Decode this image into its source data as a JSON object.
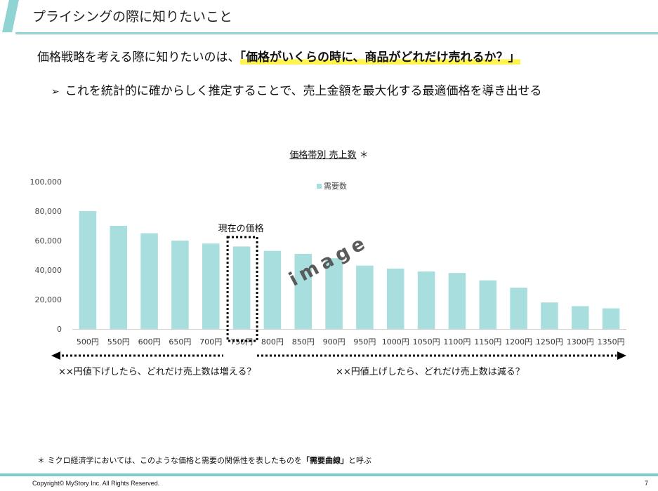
{
  "header": {
    "title": "プライシングの際に知りたいこと"
  },
  "lead": {
    "prefix": "価格戦略を考える際に知りたいのは、",
    "highlight": "「価格がいくらの時に、商品がどれだけ売れるか？」"
  },
  "bullet": {
    "marker": "➢",
    "text": "これを統計的に確からしく推定することで、売上金額を最大化する最適価格を導き出せる"
  },
  "chart_title": {
    "main": "価格帯別 売上数",
    "mark": "＊"
  },
  "chart_data": {
    "type": "bar",
    "title": "価格帯別 売上数",
    "categories": [
      "500円",
      "550円",
      "600円",
      "650円",
      "700円",
      "750円",
      "800円",
      "850円",
      "900円",
      "950円",
      "1000円",
      "1050円",
      "1100円",
      "1150円",
      "1200円",
      "1250円",
      "1300円",
      "1350円"
    ],
    "series": [
      {
        "name": "需要数",
        "values": [
          80000,
          70000,
          65000,
          60000,
          58000,
          56000,
          53000,
          51000,
          48000,
          43000,
          41000,
          39000,
          38000,
          33000,
          28000,
          18000,
          15500,
          14000
        ]
      }
    ],
    "yticks": [
      "0",
      "20,000",
      "40,000",
      "60,000",
      "80,000",
      "100,000"
    ],
    "ylim": [
      0,
      100000
    ],
    "legend_position": "top-center",
    "bar_color": "#a8dede",
    "highlight_category": "750円",
    "highlight_label": "現在の価格",
    "watermark": "image"
  },
  "annotations": {
    "left": "××円値下げしたら、どれだけ売上数は増える？",
    "right": "××円値上げしたら、どれだけ売上数は減る？"
  },
  "footnote": {
    "mark": "＊",
    "prefix": " ミクロ経済学においては、このような価格と需要の関係性を表したものを",
    "bold": "「需要曲線」",
    "suffix": "と呼ぶ"
  },
  "footer": {
    "copyright": "Copyright© MyStory Inc. All Rights Reserved.",
    "page": "7"
  }
}
